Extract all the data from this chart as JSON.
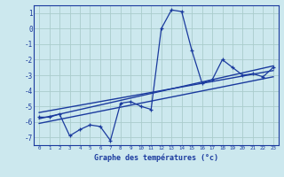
{
  "xlabel": "Graphe des températures (°c)",
  "bg_color": "#cce8ee",
  "grid_color": "#aacccc",
  "line_color": "#1a3a9e",
  "xlim": [
    -0.5,
    23.5
  ],
  "ylim": [
    -7.5,
    1.5
  ],
  "yticks": [
    1,
    0,
    -1,
    -2,
    -3,
    -4,
    -5,
    -6,
    -7
  ],
  "xticks": [
    0,
    1,
    2,
    3,
    4,
    5,
    6,
    7,
    8,
    9,
    10,
    11,
    12,
    13,
    14,
    15,
    16,
    17,
    18,
    19,
    20,
    21,
    22,
    23
  ],
  "data_x": [
    0,
    1,
    2,
    3,
    4,
    5,
    6,
    7,
    8,
    9,
    10,
    11,
    12,
    13,
    14,
    15,
    16,
    17,
    18,
    19,
    20,
    21,
    22,
    23
  ],
  "data_y": [
    -5.7,
    -5.7,
    -5.5,
    -6.9,
    -6.5,
    -6.2,
    -6.3,
    -7.2,
    -4.8,
    -4.7,
    -5.0,
    -5.2,
    0.0,
    1.2,
    1.1,
    -1.4,
    -3.5,
    -3.3,
    -2.0,
    -2.5,
    -3.0,
    -2.9,
    -3.1,
    -2.5
  ],
  "trend1_x": [
    0,
    23
  ],
  "trend1_y": [
    -5.8,
    -2.4
  ],
  "trend2_x": [
    0,
    23
  ],
  "trend2_y": [
    -5.4,
    -2.7
  ],
  "trend3_x": [
    0,
    23
  ],
  "trend3_y": [
    -6.1,
    -3.1
  ]
}
